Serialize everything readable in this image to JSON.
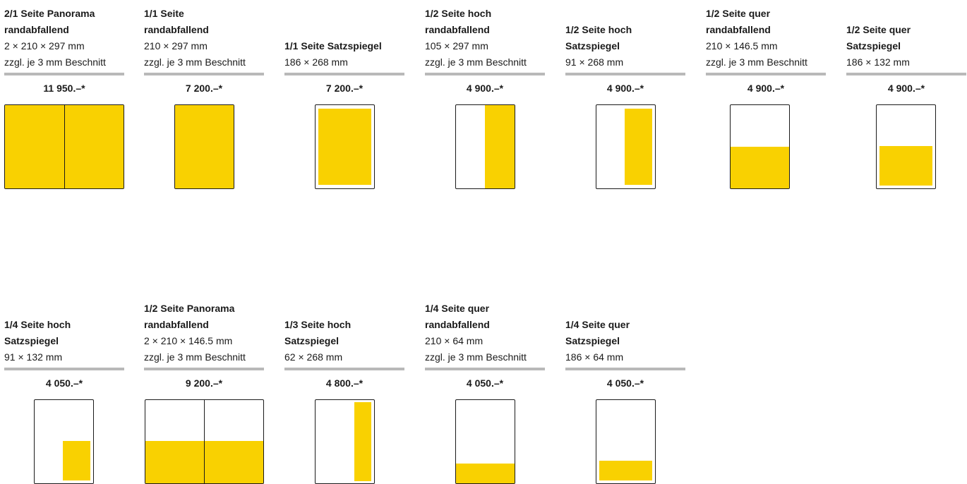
{
  "colors": {
    "accent": "#f9d101",
    "rule": "#b9b9b9",
    "outline": "#1a1a1a"
  },
  "formats": [
    {
      "title": [
        "2/1 Seite Panorama",
        "randabfallend"
      ],
      "dims": "2 × 210 × 297 mm",
      "bleed": "zzgl. je 3 mm Beschnitt",
      "price": "11 950.–*"
    },
    {
      "title": [
        "1/1 Seite",
        "randabfallend"
      ],
      "dims": "210 × 297 mm",
      "bleed": "zzgl. je 3 mm Beschnitt",
      "price": "7 200.–*"
    },
    {
      "title": [
        "1/1 Seite Satzspiegel"
      ],
      "dims": "186 × 268 mm",
      "price": "7 200.–*"
    },
    {
      "title": [
        "1/2 Seite hoch",
        "randabfallend"
      ],
      "dims": "105 × 297 mm",
      "bleed": "zzgl. je 3 mm Beschnitt",
      "price": "4 900.–*"
    },
    {
      "title": [
        "1/2 Seite hoch",
        "Satzspiegel"
      ],
      "dims": "91 × 268  mm",
      "price": "4 900.–*"
    },
    {
      "title": [
        "1/2 Seite quer",
        "randabfallend"
      ],
      "dims": "210 × 146.5 mm",
      "bleed": "zzgl. je 3 mm Beschnitt",
      "price": "4 900.–*"
    },
    {
      "title": [
        "1/2 Seite quer",
        "Satzspiegel"
      ],
      "dims": "186 × 132 mm",
      "price": "4 900.–*"
    },
    {
      "title": [
        "1/4 Seite hoch",
        "Satzspiegel"
      ],
      "dims": "91 × 132 mm",
      "price": "4 050.–*"
    },
    {
      "title": [
        "1/2 Seite Panorama",
        "randabfallend"
      ],
      "dims": "2 × 210 × 146.5 mm",
      "bleed": "zzgl. je 3 mm Beschnitt",
      "price": "9 200.–*"
    },
    {
      "title": [
        "1/3 Seite hoch",
        "Satzspiegel"
      ],
      "dims": "62 × 268 mm",
      "price": "4 800.–*"
    },
    {
      "title": [
        "1/4 Seite quer",
        "randabfallend"
      ],
      "dims": "210 × 64 mm",
      "bleed": "zzgl. je 3 mm Beschnitt",
      "price": "4 050.–*"
    },
    {
      "title": [
        "1/4 Seite quer",
        "Satzspiegel"
      ],
      "dims": "186 × 64 mm",
      "price": "4 050.–*"
    }
  ]
}
